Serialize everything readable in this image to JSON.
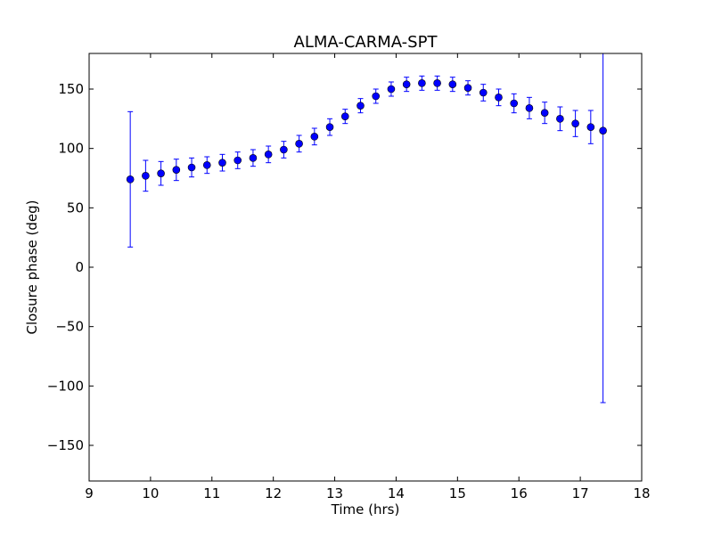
{
  "chart_data": {
    "type": "scatter",
    "title": "ALMA-CARMA-SPT",
    "xlabel": "Time (hrs)",
    "ylabel": "Closure phase (deg)",
    "xlim": [
      9,
      18
    ],
    "ylim": [
      -180,
      180
    ],
    "x_ticks": [
      9,
      10,
      11,
      12,
      13,
      14,
      15,
      16,
      17,
      18
    ],
    "x_tick_labels": [
      "9",
      "10",
      "11",
      "12",
      "13",
      "14",
      "15",
      "16",
      "17",
      "18"
    ],
    "y_ticks": [
      -150,
      -100,
      -50,
      0,
      50,
      100,
      150
    ],
    "y_tick_labels": [
      "−150",
      "−100",
      "−50",
      "0",
      "50",
      "100",
      "150"
    ],
    "grid": false,
    "marker_color": "#0000ff",
    "marker_edge_color": "#000000",
    "series": [
      {
        "points": [
          {
            "x": 9.67,
            "y": 74,
            "err": 57
          },
          {
            "x": 9.92,
            "y": 77,
            "err": 13
          },
          {
            "x": 10.17,
            "y": 79,
            "err": 10
          },
          {
            "x": 10.42,
            "y": 82,
            "err": 9
          },
          {
            "x": 10.67,
            "y": 84,
            "err": 8
          },
          {
            "x": 10.92,
            "y": 86,
            "err": 7
          },
          {
            "x": 11.17,
            "y": 88,
            "err": 7
          },
          {
            "x": 11.42,
            "y": 90,
            "err": 7
          },
          {
            "x": 11.67,
            "y": 92,
            "err": 7
          },
          {
            "x": 11.92,
            "y": 95,
            "err": 7
          },
          {
            "x": 12.17,
            "y": 99,
            "err": 7
          },
          {
            "x": 12.42,
            "y": 104,
            "err": 7
          },
          {
            "x": 12.67,
            "y": 110,
            "err": 7
          },
          {
            "x": 12.92,
            "y": 118,
            "err": 7
          },
          {
            "x": 13.17,
            "y": 127,
            "err": 6
          },
          {
            "x": 13.42,
            "y": 136,
            "err": 6
          },
          {
            "x": 13.67,
            "y": 144,
            "err": 6
          },
          {
            "x": 13.92,
            "y": 150,
            "err": 6
          },
          {
            "x": 14.17,
            "y": 154,
            "err": 6
          },
          {
            "x": 14.42,
            "y": 155,
            "err": 6
          },
          {
            "x": 14.67,
            "y": 155,
            "err": 6
          },
          {
            "x": 14.92,
            "y": 154,
            "err": 6
          },
          {
            "x": 15.17,
            "y": 151,
            "err": 6
          },
          {
            "x": 15.42,
            "y": 147,
            "err": 7
          },
          {
            "x": 15.67,
            "y": 143,
            "err": 7
          },
          {
            "x": 15.92,
            "y": 138,
            "err": 8
          },
          {
            "x": 16.17,
            "y": 134,
            "err": 9
          },
          {
            "x": 16.42,
            "y": 130,
            "err": 9
          },
          {
            "x": 16.67,
            "y": 125,
            "err": 10
          },
          {
            "x": 16.92,
            "y": 121,
            "err": 11
          },
          {
            "x": 17.17,
            "y": 118,
            "err": 14
          },
          {
            "x": 17.37,
            "y": 115,
            "err": 229
          }
        ]
      }
    ]
  }
}
